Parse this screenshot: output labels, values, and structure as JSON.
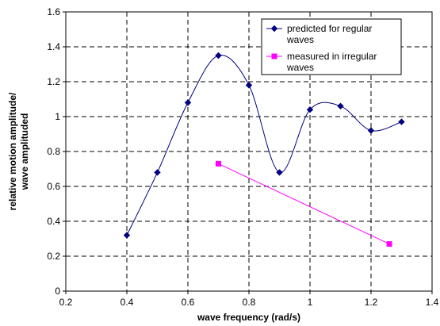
{
  "chart_data": {
    "type": "line",
    "xlabel": "wave frequency (rad/s)",
    "ylabel": "relative motion amplitude/ wave amplituded",
    "ylabel_lines": [
      "relative motion amplitude/",
      "wave amplituded"
    ],
    "xlim": [
      0.2,
      1.4
    ],
    "ylim": [
      0,
      1.6
    ],
    "xticks": [
      "0.2",
      "0.4",
      "0.6",
      "0.8",
      "1",
      "1.2",
      "1.4"
    ],
    "yticks": [
      "0",
      "0.2",
      "0.4",
      "0.6",
      "0.8",
      "1",
      "1.2",
      "1.4",
      "1.6"
    ],
    "grid": true,
    "legend_position": "top-right",
    "series": [
      {
        "name": "predicted for regular waves",
        "name_lines": [
          "predicted for regular",
          "waves"
        ],
        "color": "#000080",
        "marker": "diamond",
        "smooth": true,
        "x": [
          0.4,
          0.5,
          0.6,
          0.7,
          0.8,
          0.9,
          1.0,
          1.1,
          1.2,
          1.3
        ],
        "y": [
          0.32,
          0.68,
          1.08,
          1.35,
          1.18,
          0.68,
          1.04,
          1.06,
          0.92,
          0.97
        ]
      },
      {
        "name": "measured in irregular waves",
        "name_lines": [
          "measured in irregular",
          "waves"
        ],
        "color": "#ff00ff",
        "marker": "square",
        "smooth": false,
        "x": [
          0.7,
          1.26
        ],
        "y": [
          0.73,
          0.27
        ]
      }
    ]
  }
}
